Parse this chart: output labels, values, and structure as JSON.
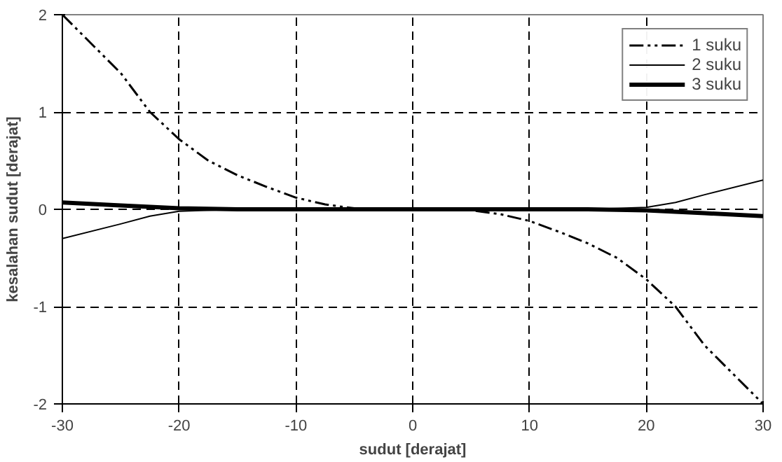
{
  "chart_data": {
    "type": "line",
    "xlabel": "sudut [derajat]",
    "ylabel": "kesalahan sudut [derajat]",
    "xlim": [
      -30,
      30
    ],
    "ylim": [
      -2,
      2
    ],
    "xticks": [
      -30,
      -20,
      -10,
      0,
      10,
      20,
      30
    ],
    "yticks": [
      -2,
      -1,
      0,
      1,
      2
    ],
    "grid": true,
    "legend": "top right",
    "marker": "none",
    "series": [
      {
        "name": "1 suku",
        "color": "#000000",
        "line_style": "dashdot",
        "x": [
          -30,
          -27.5,
          -25,
          -22.5,
          -20,
          -17.5,
          -15,
          -12.5,
          -10,
          -7.5,
          -5,
          0,
          5,
          7.5,
          10,
          12.5,
          15,
          17.5,
          20,
          22.5,
          25,
          27.5,
          30
        ],
        "values": [
          2,
          1.7,
          1.4,
          1.0,
          0.72,
          0.5,
          0.35,
          0.23,
          0.12,
          0.05,
          0.01,
          0,
          -0.01,
          -0.05,
          -0.12,
          -0.23,
          -0.35,
          -0.5,
          -0.72,
          -1.0,
          -1.4,
          -1.7,
          -2
        ]
      },
      {
        "name": "2 suku",
        "color": "#000000",
        "line_style": "solid",
        "x": [
          -30,
          -25,
          -22.5,
          -20,
          -15,
          0,
          15,
          20,
          22.5,
          25,
          30
        ],
        "values": [
          -0.3,
          -0.15,
          -0.07,
          -0.02,
          0,
          0,
          0,
          0.02,
          0.07,
          0.15,
          0.3
        ]
      },
      {
        "name": "3 suku",
        "color": "#000000",
        "line_style": "solid",
        "x": [
          -30,
          -25,
          -20,
          -15,
          0,
          15,
          20,
          25,
          30
        ],
        "values": [
          0.07,
          0.04,
          0.01,
          0,
          0,
          0,
          -0.01,
          -0.04,
          -0.07
        ]
      }
    ]
  }
}
